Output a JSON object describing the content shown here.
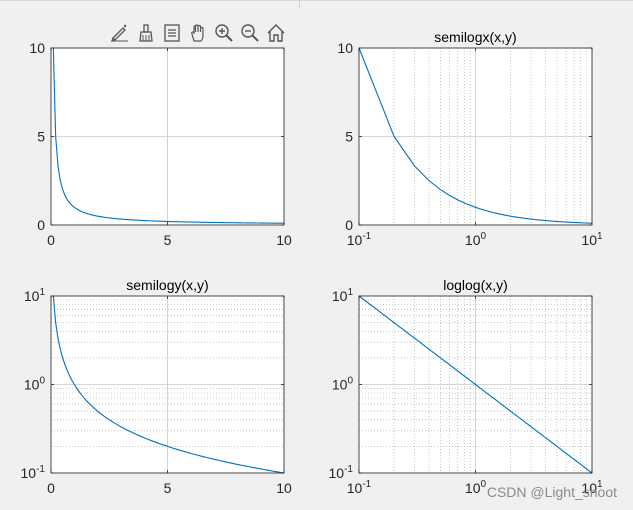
{
  "toolbar": {
    "icons": [
      "brush-edit-icon",
      "clean-brush-icon",
      "legend-icon",
      "pan-hand-icon",
      "zoom-in-icon",
      "zoom-out-icon",
      "home-icon"
    ]
  },
  "colors": {
    "line": "#0072bd",
    "axes_bg": "#ffffff",
    "figure_bg": "#f0f0f0",
    "grid": "#c8c8c8"
  },
  "watermark": "CSDN @Light_shoot",
  "chart_data": [
    {
      "id": "plot",
      "type": "line",
      "title": "",
      "xscale": "linear",
      "yscale": "linear",
      "xlim": [
        0,
        10
      ],
      "ylim": [
        0,
        10
      ],
      "xticks": [
        0,
        5,
        10
      ],
      "xticklabels": [
        "0",
        "5",
        "10"
      ],
      "yticks": [
        0,
        5,
        10
      ],
      "yticklabels": [
        "0",
        "5",
        "10"
      ],
      "grid": true,
      "series": [
        {
          "function": "y = 1/x",
          "x_range": [
            0.1,
            10
          ],
          "x_step": 0.1
        }
      ]
    },
    {
      "id": "semilogx",
      "type": "line",
      "title": "semilogx(x,y)",
      "xscale": "log",
      "yscale": "linear",
      "xlim": [
        0.1,
        10
      ],
      "ylim": [
        0,
        10
      ],
      "xticks": [
        0.1,
        1,
        10
      ],
      "xticklabels": [
        "10^-1",
        "10^0",
        "10^1"
      ],
      "yticks": [
        0,
        5,
        10
      ],
      "yticklabels": [
        "0",
        "5",
        "10"
      ],
      "grid": true,
      "series": [
        {
          "function": "y = 1/x",
          "x_range": [
            0.1,
            10
          ],
          "x_step": 0.1
        }
      ]
    },
    {
      "id": "semilogy",
      "type": "line",
      "title": "semilogy(x,y)",
      "xscale": "linear",
      "yscale": "log",
      "xlim": [
        0,
        10
      ],
      "ylim": [
        0.1,
        10
      ],
      "xticks": [
        0,
        5,
        10
      ],
      "xticklabels": [
        "0",
        "5",
        "10"
      ],
      "yticks": [
        0.1,
        1,
        10
      ],
      "yticklabels": [
        "10^-1",
        "10^0",
        "10^1"
      ],
      "grid": true,
      "series": [
        {
          "function": "y = 1/x",
          "x_range": [
            0.1,
            10
          ],
          "x_step": 0.1
        }
      ]
    },
    {
      "id": "loglog",
      "type": "line",
      "title": "loglog(x,y)",
      "xscale": "log",
      "yscale": "log",
      "xlim": [
        0.1,
        10
      ],
      "ylim": [
        0.1,
        10
      ],
      "xticks": [
        0.1,
        1,
        10
      ],
      "xticklabels": [
        "10^-1",
        "10^0",
        "10^1"
      ],
      "yticks": [
        0.1,
        1,
        10
      ],
      "yticklabels": [
        "10^-1",
        "10^0",
        "10^1"
      ],
      "grid": true,
      "series": [
        {
          "function": "y = 1/x",
          "x_range": [
            0.1,
            10
          ],
          "x_step": 0.1
        }
      ]
    }
  ]
}
